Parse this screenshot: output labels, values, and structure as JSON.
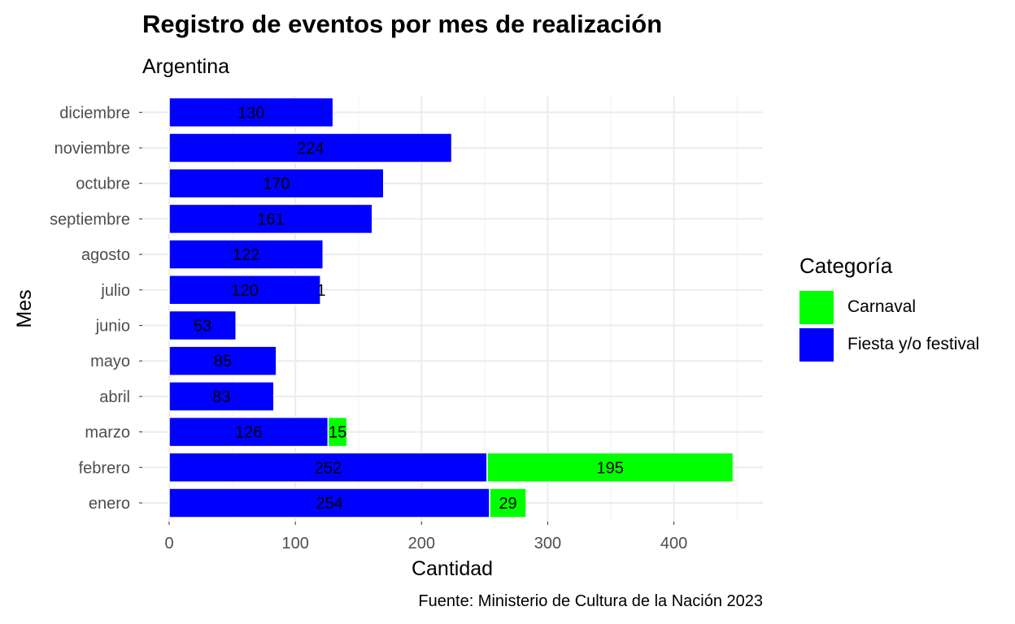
{
  "chart_data": {
    "type": "bar",
    "orientation": "horizontal",
    "stacked": true,
    "title": "Registro de eventos por mes de realización",
    "subtitle": "Argentina",
    "caption": "Fuente: Ministerio de Cultura de la Nación 2023",
    "xlabel": "Cantidad",
    "ylabel": "Mes",
    "xlim": [
      0,
      470
    ],
    "xticks": [
      0,
      100,
      200,
      300,
      400
    ],
    "grid": true,
    "categories": [
      "enero",
      "febrero",
      "marzo",
      "abril",
      "mayo",
      "junio",
      "julio",
      "agosto",
      "septiembre",
      "octubre",
      "noviembre",
      "diciembre"
    ],
    "series": [
      {
        "name": "Fiesta y/o festival",
        "color": "#0000FF",
        "values": [
          254,
          252,
          126,
          83,
          85,
          53,
          120,
          122,
          161,
          170,
          224,
          130
        ]
      },
      {
        "name": "Carnaval",
        "color": "#00FF00",
        "values": [
          29,
          195,
          15,
          0,
          0,
          0,
          1,
          0,
          0,
          0,
          0,
          0
        ]
      }
    ],
    "legend": {
      "title": "Categoría",
      "position": "right",
      "entries": [
        {
          "label": "Carnaval",
          "color": "#00FF00"
        },
        {
          "label": "Fiesta y/o festival",
          "color": "#0000FF"
        }
      ]
    }
  }
}
